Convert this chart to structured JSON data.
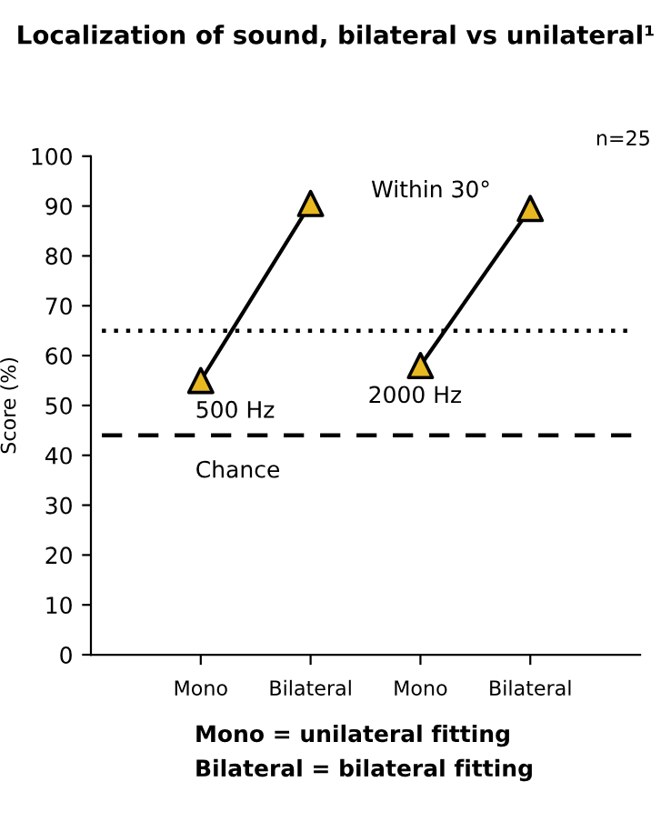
{
  "chart_data": {
    "type": "line",
    "title": "Localization of sound, bilateral vs unilateral¹",
    "ylabel": "Score (%)",
    "categories": [
      "Mono",
      "Bilateral",
      "Mono",
      "Bilateral"
    ],
    "series": [
      {
        "name": "500 Hz",
        "color": "#e8b820",
        "values": [
          55,
          90.5,
          null,
          null
        ]
      },
      {
        "name": "2000 Hz",
        "color": "#e8b820",
        "values": [
          null,
          null,
          58,
          89.5
        ]
      }
    ],
    "ylim": [
      0,
      100
    ],
    "yticks": [
      0,
      10,
      20,
      30,
      40,
      50,
      60,
      70,
      80,
      90,
      100
    ],
    "ref_lines": [
      {
        "axis": "y",
        "value": 65,
        "line_style": "dotted",
        "color": "#000000"
      },
      {
        "axis": "y",
        "value": 44,
        "label": "Chance",
        "line_style": "dashed",
        "color": "#000000"
      }
    ],
    "marker": "triangle",
    "grid": false,
    "legend": false,
    "annotations": [
      "n=25",
      "Within 30°",
      "Mono = unilateral fitting",
      "Bilateral = bilateral fitting"
    ]
  }
}
